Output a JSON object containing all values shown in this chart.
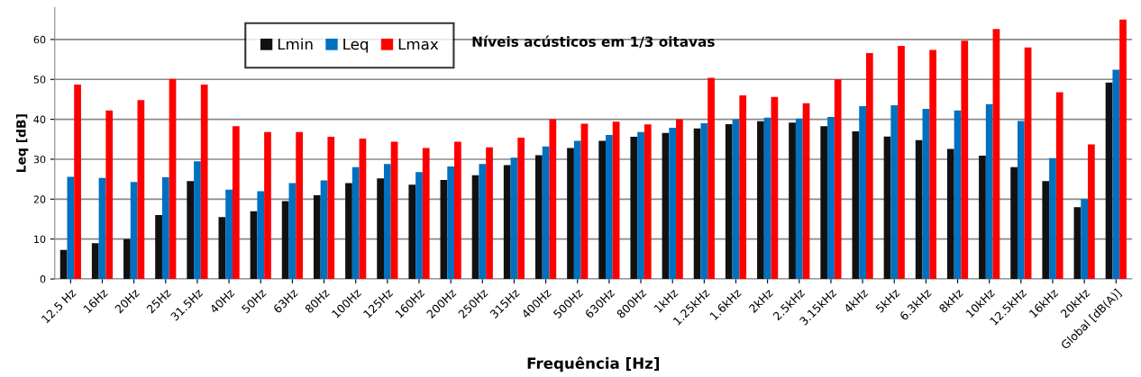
{
  "chart_data": {
    "type": "bar",
    "title": "Níveis acústicos em 1/3 oitavas",
    "xlabel": "Frequência [Hz]",
    "ylabel": "Leq [dB]",
    "categories": [
      "12.5 Hz",
      "16Hz",
      "20Hz",
      "25Hz",
      "31.5Hz",
      "40Hz",
      "50Hz",
      "63Hz",
      "80Hz",
      "100Hz",
      "125Hz",
      "160Hz",
      "200Hz",
      "250Hz",
      "315Hz",
      "400Hz",
      "500Hz",
      "630Hz",
      "800Hz",
      "1kHz",
      "1.25kHz",
      "1.6kHz",
      "2kHz",
      "2.5kHz",
      "3.15kHz",
      "4kHz",
      "5kHz",
      "6.3kHz",
      "8kHz",
      "10kHz",
      "12.5kHz",
      "16kHz",
      "20kHz",
      "Global [dB(A)]"
    ],
    "series": [
      {
        "name": "Lmin",
        "color": "#111111",
        "values": [
          7.3,
          9,
          10,
          16,
          24.5,
          15.5,
          17,
          19.5,
          21,
          24,
          25.2,
          23.6,
          24.8,
          26,
          28.5,
          31,
          32.8,
          34.6,
          35.6,
          36.6,
          37.7,
          38.8,
          39.5,
          39.2,
          38.3,
          37,
          35.7,
          34.8,
          32.6,
          30.9,
          28,
          24.5,
          18,
          49.2
        ]
      },
      {
        "name": "Leq",
        "color": "#0070c0",
        "values": [
          25.6,
          25.3,
          24.3,
          25.5,
          29.5,
          22.4,
          22,
          24,
          24.7,
          28,
          28.8,
          26.8,
          28.2,
          28.8,
          30.4,
          33.2,
          34.6,
          36.1,
          36.8,
          37.9,
          39,
          40,
          40.4,
          40.2,
          40.6,
          43.3,
          43.5,
          42.6,
          42.2,
          43.8,
          39.6,
          30.3,
          20,
          52.4
        ]
      },
      {
        "name": "Lmax",
        "color": "#ff0000",
        "values": [
          48.7,
          42.2,
          44.8,
          50.1,
          48.7,
          38.3,
          36.8,
          36.8,
          35.6,
          35.2,
          34.4,
          32.8,
          34.4,
          33,
          35.4,
          40,
          38.9,
          39.4,
          38.7,
          40,
          50.4,
          46,
          45.6,
          44,
          50,
          56.6,
          58.4,
          57.4,
          59.7,
          62.6,
          58,
          46.8,
          33.7,
          65
        ]
      }
    ],
    "ylim": [
      0,
      68
    ],
    "yticks": [
      0,
      10,
      20,
      30,
      40,
      50,
      60
    ],
    "grid": "y",
    "legend": "top left"
  }
}
